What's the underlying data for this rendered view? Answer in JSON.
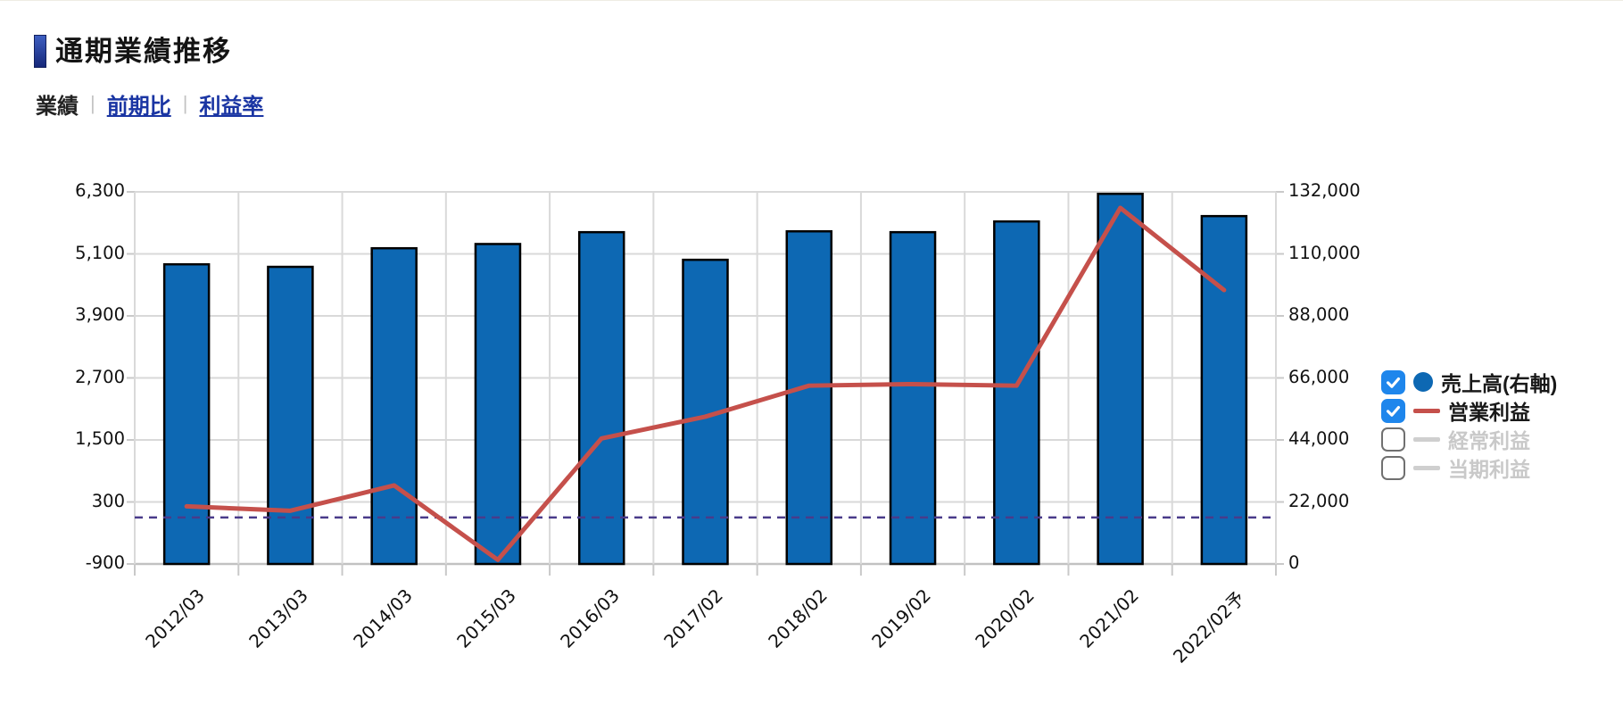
{
  "page": {
    "title": "通期業績推移"
  },
  "tabs": {
    "separator": "|",
    "items": [
      {
        "label": "業績",
        "active": true
      },
      {
        "label": "前期比",
        "active": false
      },
      {
        "label": "利益率",
        "active": false
      }
    ]
  },
  "legend": {
    "items": [
      {
        "label": "売上高(右軸)",
        "checked": true,
        "marker": "circle",
        "color": "#0D68B3"
      },
      {
        "label": "営業利益",
        "checked": true,
        "marker": "line",
        "color": "#C5504B"
      },
      {
        "label": "経常利益",
        "checked": false,
        "marker": "line",
        "color": "#CFCFCF"
      },
      {
        "label": "当期利益",
        "checked": false,
        "marker": "line",
        "color": "#CFCFCF"
      }
    ]
  },
  "chart_data": {
    "type": "combo",
    "title": "通期業績推移",
    "categories": [
      "2012/03",
      "2013/03",
      "2014/03",
      "2015/03",
      "2016/03",
      "2017/02",
      "2018/02",
      "2019/02",
      "2020/02",
      "2021/02",
      "2022/02予"
    ],
    "series": [
      {
        "name": "売上高(右軸)",
        "type": "bar",
        "axis": "right",
        "color": "#0D68B3",
        "visible": true,
        "values": [
          106300,
          105400,
          112000,
          113500,
          117700,
          107900,
          118000,
          117700,
          121500,
          131300,
          123400
        ]
      },
      {
        "name": "営業利益",
        "type": "line",
        "axis": "left",
        "color": "#C5504B",
        "visible": true,
        "values": [
          215,
          130,
          620,
          -820,
          1530,
          1950,
          2550,
          2580,
          2550,
          5990,
          4400
        ]
      },
      {
        "name": "経常利益",
        "type": "line",
        "axis": "left",
        "color": "#CFCFCF",
        "visible": false,
        "values": []
      },
      {
        "name": "当期利益",
        "type": "line",
        "axis": "left",
        "color": "#CFCFCF",
        "visible": false,
        "values": []
      }
    ],
    "left_axis": {
      "min": -900,
      "max": 6300,
      "step": 1200,
      "tick_labels": [
        "6,300",
        "5,100",
        "3,900",
        "2,700",
        "1,500",
        "300",
        "-900"
      ]
    },
    "right_axis": {
      "min": 0,
      "max": 132000,
      "step": 22000,
      "tick_labels": [
        "132,000",
        "110,000",
        "88,000",
        "66,000",
        "44,000",
        "22,000",
        "0"
      ]
    },
    "zero_line": {
      "axis": "left",
      "value": 0,
      "style": "dashed",
      "color": "#493B8A"
    },
    "grid": true,
    "legend_position": "right",
    "colors": {
      "bar": "#0D68B3",
      "line": "#C5504B",
      "grid": "#D9D9D9",
      "axis_text": "#111111",
      "link_blue": "#1A35A3",
      "checkbox_blue": "#1E86EC",
      "inactive_gray": "#C9C9C9"
    }
  }
}
